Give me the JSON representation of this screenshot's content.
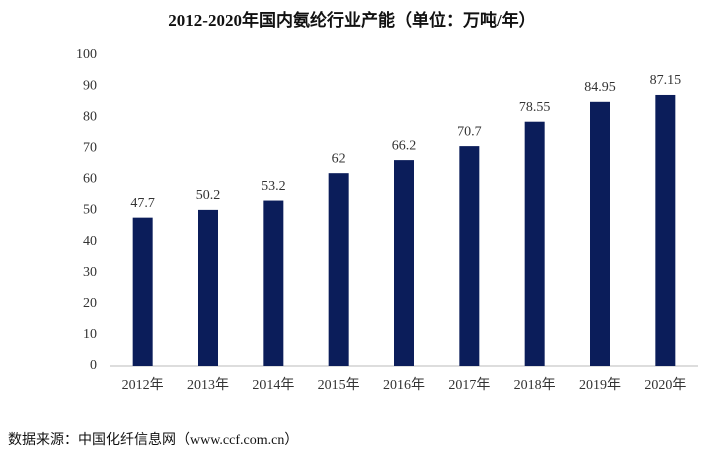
{
  "chart_data": {
    "type": "bar",
    "title": "2012-2020年国内氨纶行业产能（单位：万吨/年）",
    "categories": [
      "2012年",
      "2013年",
      "2014年",
      "2015年",
      "2016年",
      "2017年",
      "2018年",
      "2019年",
      "2020年"
    ],
    "values": [
      47.7,
      50.2,
      53.2,
      62,
      66.2,
      70.7,
      78.55,
      84.95,
      87.15
    ],
    "color": "#0b1d5a",
    "ylim": [
      0,
      100
    ],
    "yticks": [
      0,
      10,
      20,
      30,
      40,
      50,
      60,
      70,
      80,
      90,
      100
    ],
    "grid": false,
    "source": "数据来源：中国化纤信息网（www.ccf.com.cn）"
  }
}
